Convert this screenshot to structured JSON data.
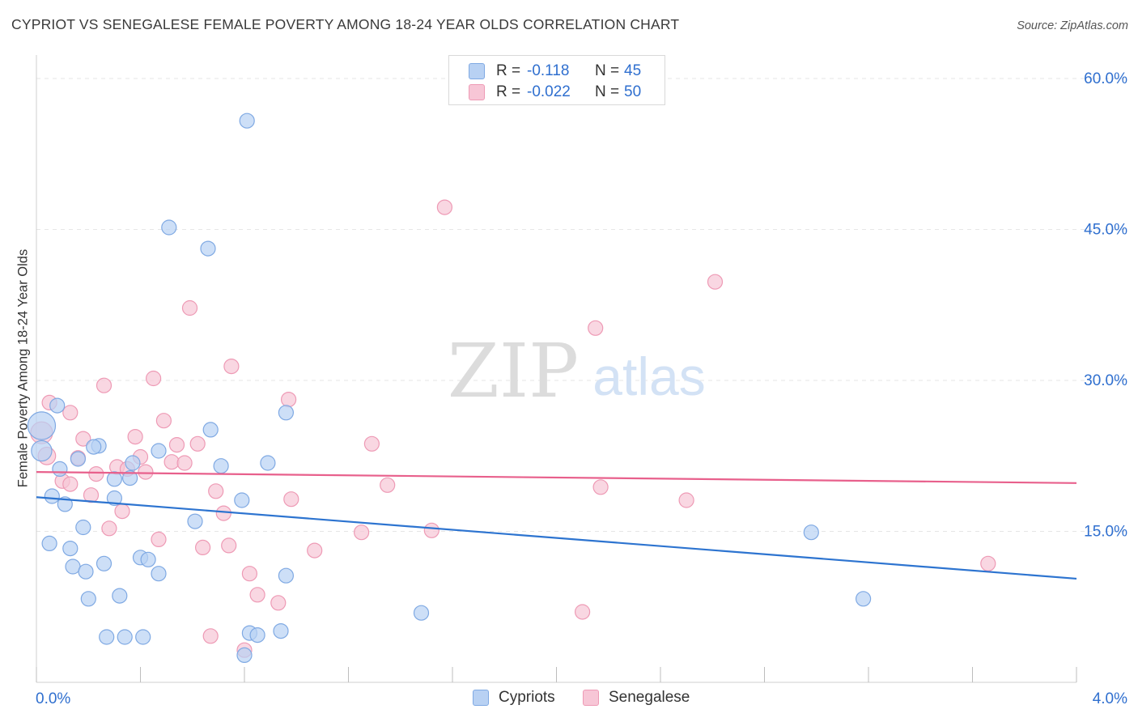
{
  "title": "CYPRIOT VS SENEGALESE FEMALE POVERTY AMONG 18-24 YEAR OLDS CORRELATION CHART",
  "source": "Source: ZipAtlas.com",
  "watermark": {
    "zip": "ZIP",
    "atlas": "atlas"
  },
  "legend_stats": [
    {
      "r_label": "R =",
      "r_value": "-0.118",
      "n_label": "N =",
      "n_value": "45"
    },
    {
      "r_label": "R =",
      "r_value": "-0.022",
      "n_label": "N =",
      "n_value": "50"
    }
  ],
  "legend_series": [
    "Cypriots",
    "Senegalese"
  ],
  "colors": {
    "blue_fill": "#b8d1f3",
    "blue_stroke": "#7fa9e3",
    "blue_line": "#2d74d0",
    "pink_fill": "#f7c6d6",
    "pink_stroke": "#ee9ab5",
    "pink_line": "#e8608c",
    "axis_text": "#2f6fcf",
    "grid": "#e6e6e6"
  },
  "chart_data": {
    "type": "scatter",
    "title": "CYPRIOT VS SENEGALESE FEMALE POVERTY AMONG 18-24 YEAR OLDS CORRELATION CHART",
    "xlabel": "",
    "ylabel": "Female Poverty Among 18-24 Year Olds",
    "xlim": [
      0,
      4
    ],
    "ylim": [
      0,
      60
    ],
    "x_tick_labels": [
      "0.0%",
      "4.0%"
    ],
    "y_ticks": [
      15,
      30,
      45,
      60
    ],
    "y_tick_labels": [
      "15.0%",
      "30.0%",
      "45.0%",
      "60.0%"
    ],
    "grid": true,
    "series": [
      {
        "name": "Cypriots",
        "points": [
          [
            0.02,
            25.5,
            1.9
          ],
          [
            0.02,
            23.0,
            1.4
          ],
          [
            0.08,
            27.5,
            1
          ],
          [
            0.06,
            18.5,
            1
          ],
          [
            0.09,
            21.2,
            1
          ],
          [
            0.11,
            17.7,
            1
          ],
          [
            0.16,
            22.2,
            1
          ],
          [
            0.24,
            23.5,
            1
          ],
          [
            0.22,
            23.4,
            1
          ],
          [
            0.3,
            20.2,
            1
          ],
          [
            0.36,
            20.3,
            1
          ],
          [
            0.37,
            21.8,
            1
          ],
          [
            0.3,
            18.3,
            1
          ],
          [
            0.05,
            13.8,
            1
          ],
          [
            0.13,
            13.3,
            1
          ],
          [
            0.18,
            15.4,
            1
          ],
          [
            0.14,
            11.5,
            1
          ],
          [
            0.19,
            11.0,
            1
          ],
          [
            0.26,
            11.8,
            1
          ],
          [
            0.4,
            12.4,
            1
          ],
          [
            0.43,
            12.2,
            1
          ],
          [
            0.47,
            10.8,
            1
          ],
          [
            0.47,
            23.0,
            1
          ],
          [
            0.61,
            16.0,
            1
          ],
          [
            0.67,
            25.1,
            1
          ],
          [
            0.71,
            21.5,
            1
          ],
          [
            0.79,
            18.1,
            1
          ],
          [
            0.89,
            21.8,
            1
          ],
          [
            0.96,
            26.8,
            1
          ],
          [
            0.2,
            8.3,
            1
          ],
          [
            0.32,
            8.6,
            1
          ],
          [
            0.27,
            4.5,
            1
          ],
          [
            0.34,
            4.5,
            1
          ],
          [
            0.41,
            4.5,
            1
          ],
          [
            0.82,
            4.9,
            1
          ],
          [
            0.85,
            4.7,
            1
          ],
          [
            0.94,
            5.1,
            1
          ],
          [
            0.8,
            2.7,
            1
          ],
          [
            0.96,
            10.6,
            1
          ],
          [
            1.48,
            6.9,
            1
          ],
          [
            0.51,
            45.2,
            1
          ],
          [
            0.66,
            43.1,
            1
          ],
          [
            0.81,
            55.8,
            1
          ],
          [
            2.98,
            14.9,
            1
          ],
          [
            3.18,
            8.3,
            1
          ]
        ]
      },
      {
        "name": "Senegalese",
        "points": [
          [
            0.02,
            24.8,
            1.5
          ],
          [
            0.04,
            22.5,
            1.2
          ],
          [
            0.05,
            27.8,
            1
          ],
          [
            0.1,
            20.0,
            1
          ],
          [
            0.13,
            19.7,
            1
          ],
          [
            0.13,
            26.8,
            1
          ],
          [
            0.16,
            22.3,
            1
          ],
          [
            0.18,
            24.2,
            1
          ],
          [
            0.21,
            18.6,
            1
          ],
          [
            0.23,
            20.7,
            1
          ],
          [
            0.26,
            29.5,
            1
          ],
          [
            0.28,
            15.3,
            1
          ],
          [
            0.31,
            21.4,
            1
          ],
          [
            0.33,
            17.0,
            1
          ],
          [
            0.35,
            21.2,
            1
          ],
          [
            0.38,
            24.4,
            1
          ],
          [
            0.4,
            22.4,
            1
          ],
          [
            0.42,
            20.9,
            1
          ],
          [
            0.45,
            30.2,
            1
          ],
          [
            0.47,
            14.2,
            1
          ],
          [
            0.49,
            26.0,
            1
          ],
          [
            0.52,
            21.9,
            1
          ],
          [
            0.54,
            23.6,
            1
          ],
          [
            0.57,
            21.8,
            1
          ],
          [
            0.59,
            37.2,
            1
          ],
          [
            0.62,
            23.7,
            1
          ],
          [
            0.64,
            13.4,
            1
          ],
          [
            0.67,
            4.6,
            1
          ],
          [
            0.69,
            19.0,
            1
          ],
          [
            0.72,
            16.8,
            1
          ],
          [
            0.74,
            13.6,
            1
          ],
          [
            0.75,
            31.4,
            1
          ],
          [
            0.8,
            3.2,
            1
          ],
          [
            0.82,
            10.8,
            1
          ],
          [
            0.85,
            8.7,
            1
          ],
          [
            0.93,
            7.9,
            1
          ],
          [
            0.97,
            28.1,
            1
          ],
          [
            0.98,
            18.2,
            1
          ],
          [
            1.07,
            13.1,
            1
          ],
          [
            1.25,
            14.9,
            1
          ],
          [
            1.29,
            23.7,
            1
          ],
          [
            1.35,
            19.6,
            1
          ],
          [
            1.52,
            15.1,
            1
          ],
          [
            1.57,
            47.2,
            1
          ],
          [
            2.1,
            7.0,
            1
          ],
          [
            2.15,
            35.2,
            1
          ],
          [
            2.17,
            19.4,
            1
          ],
          [
            2.5,
            18.1,
            1
          ],
          [
            2.61,
            39.8,
            1
          ],
          [
            3.66,
            11.8,
            1
          ]
        ]
      }
    ],
    "trend_lines": [
      {
        "name": "Cypriots",
        "x": [
          0,
          4
        ],
        "y": [
          18.4,
          10.3
        ]
      },
      {
        "name": "Senegalese",
        "x": [
          0,
          4
        ],
        "y": [
          20.9,
          19.8
        ]
      }
    ]
  }
}
